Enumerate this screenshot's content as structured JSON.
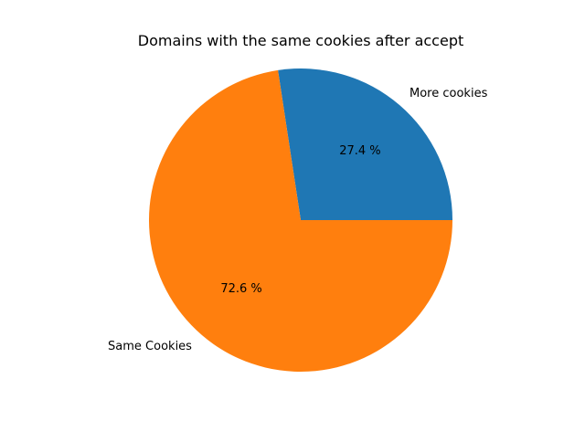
{
  "chart_data": {
    "type": "pie",
    "title": "Domains with the same cookies after accept",
    "slices": [
      {
        "label": "More cookies",
        "value": 27.4,
        "pct_label": "27.4 %",
        "color": "#1f77b4"
      },
      {
        "label": "Same Cookies",
        "value": 72.6,
        "pct_label": "72.6 %",
        "color": "#ff7f0e"
      }
    ],
    "start_angle_deg": 0,
    "direction": "counterclockwise",
    "legend": "none"
  }
}
